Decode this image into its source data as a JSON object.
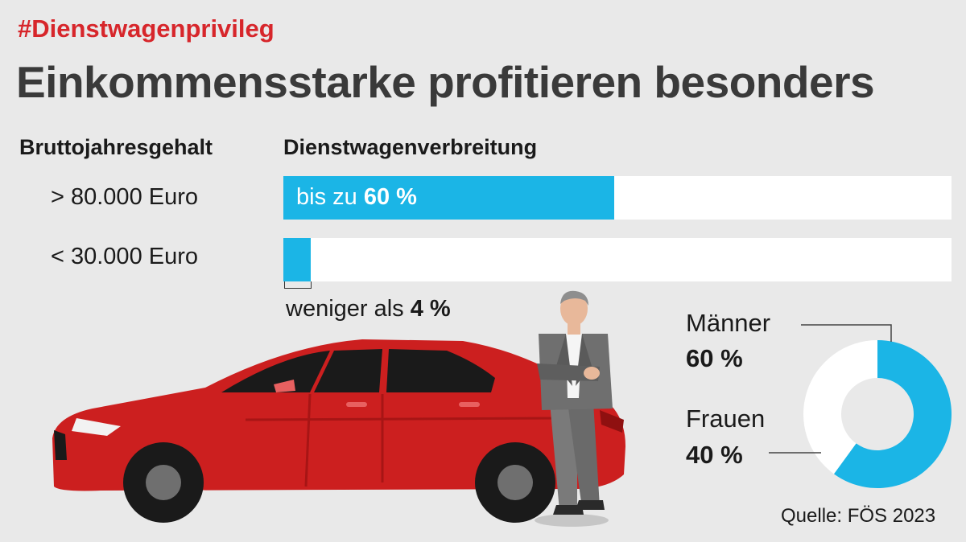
{
  "header": {
    "hashtag": "#Dienstwagenprivileg",
    "headline": "Einkommensstarke profitieren besonders"
  },
  "columns": {
    "income_header": "Bruttojahresgehalt",
    "share_header": "Dienstwagenverbreitung"
  },
  "rows": [
    {
      "label": "> 80.000 Euro",
      "prefix": "bis zu",
      "value_text": "60 %"
    },
    {
      "label": "< 30.000 Euro",
      "prefix": "weniger als",
      "value_text": "4 %"
    }
  ],
  "donut": {
    "men_label": "Männer",
    "men_value": "60 %",
    "women_label": "Frauen",
    "women_value": "40 %"
  },
  "source": "Quelle: FÖS 2023",
  "colors": {
    "accent_red": "#d7262b",
    "bar_blue": "#1bb5e6",
    "track_white": "#ffffff",
    "background": "#e9e9e9",
    "car_red": "#cc1f1f"
  },
  "icons": [
    "car-illustration",
    "businessman-illustration"
  ],
  "chart_data": [
    {
      "type": "bar",
      "orientation": "horizontal",
      "categories": [
        "> 80.000 Euro",
        "< 30.000 Euro"
      ],
      "values": [
        60,
        4
      ],
      "unit": "%",
      "xlim": [
        0,
        100
      ]
    },
    {
      "type": "pie",
      "donut": true,
      "labels": [
        "Männer",
        "Frauen"
      ],
      "values": [
        60,
        40
      ],
      "unit": "%"
    }
  ]
}
